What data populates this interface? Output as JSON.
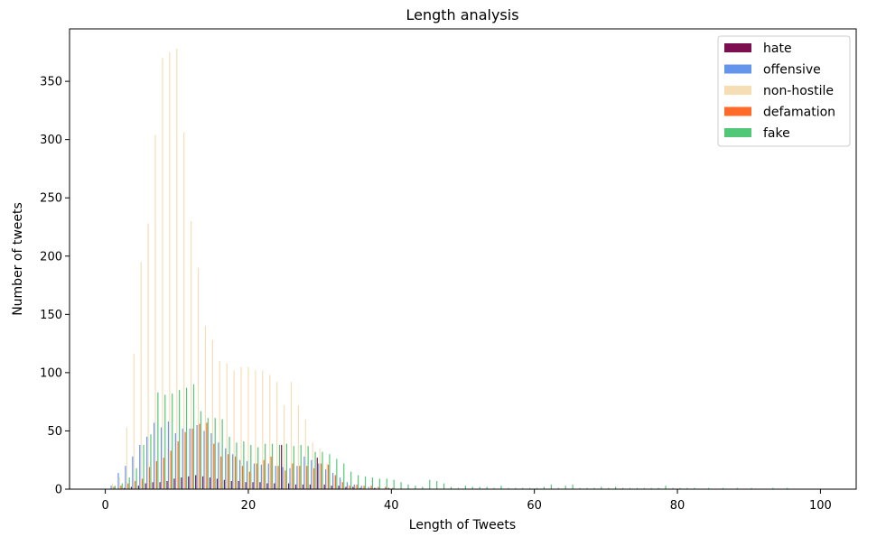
{
  "chart_data": {
    "type": "bar",
    "title": "Length analysis",
    "xlabel": "Length of Tweets",
    "ylabel": "Number of tweets",
    "xlim": [
      -5,
      105
    ],
    "ylim": [
      0,
      395
    ],
    "xticks": [
      0,
      20,
      40,
      60,
      80,
      100
    ],
    "yticks": [
      0,
      50,
      100,
      150,
      200,
      250,
      300,
      350
    ],
    "grid": false,
    "legend_position": "top-right",
    "series": [
      {
        "name": "hate",
        "color": "#7b0f4f",
        "values": [
          [
            3,
            1
          ],
          [
            4,
            2
          ],
          [
            5,
            3
          ],
          [
            6,
            5
          ],
          [
            7,
            6
          ],
          [
            8,
            6
          ],
          [
            9,
            7
          ],
          [
            10,
            9
          ],
          [
            11,
            10
          ],
          [
            12,
            11
          ],
          [
            13,
            12
          ],
          [
            14,
            11
          ],
          [
            15,
            10
          ],
          [
            16,
            9
          ],
          [
            17,
            8
          ],
          [
            18,
            7
          ],
          [
            19,
            7
          ],
          [
            20,
            6
          ],
          [
            21,
            6
          ],
          [
            22,
            6
          ],
          [
            23,
            5
          ],
          [
            24,
            5
          ],
          [
            25,
            38
          ],
          [
            26,
            5
          ],
          [
            27,
            4
          ],
          [
            28,
            4
          ],
          [
            29,
            4
          ],
          [
            30,
            27
          ],
          [
            31,
            4
          ],
          [
            32,
            3
          ],
          [
            33,
            3
          ],
          [
            34,
            2
          ],
          [
            35,
            2
          ],
          [
            36,
            1
          ],
          [
            38,
            1
          ],
          [
            40,
            1
          ]
        ]
      },
      {
        "name": "offensive",
        "color": "#6495ed",
        "values": [
          [
            1,
            3
          ],
          [
            2,
            14
          ],
          [
            3,
            20
          ],
          [
            4,
            28
          ],
          [
            5,
            38
          ],
          [
            6,
            45
          ],
          [
            7,
            57
          ],
          [
            8,
            53
          ],
          [
            9,
            58
          ],
          [
            10,
            48
          ],
          [
            11,
            52
          ],
          [
            12,
            52
          ],
          [
            13,
            55
          ],
          [
            14,
            50
          ],
          [
            15,
            48
          ],
          [
            16,
            40
          ],
          [
            17,
            35
          ],
          [
            18,
            30
          ],
          [
            19,
            25
          ],
          [
            20,
            24
          ],
          [
            21,
            22
          ],
          [
            22,
            21
          ],
          [
            23,
            22
          ],
          [
            24,
            20
          ],
          [
            25,
            19
          ],
          [
            26,
            18
          ],
          [
            27,
            20
          ],
          [
            28,
            28
          ],
          [
            29,
            25
          ],
          [
            30,
            22
          ],
          [
            31,
            17
          ],
          [
            32,
            14
          ],
          [
            33,
            10
          ],
          [
            34,
            6
          ],
          [
            35,
            4
          ],
          [
            36,
            3
          ],
          [
            37,
            2
          ],
          [
            38,
            1
          ]
        ]
      },
      {
        "name": "non-hostile",
        "color": "#f5deb3",
        "values": [
          [
            1,
            5
          ],
          [
            2,
            10
          ],
          [
            3,
            53
          ],
          [
            4,
            116
          ],
          [
            5,
            195
          ],
          [
            6,
            228
          ],
          [
            7,
            304
          ],
          [
            8,
            370
          ],
          [
            9,
            375
          ],
          [
            10,
            378
          ],
          [
            11,
            306
          ],
          [
            12,
            230
          ],
          [
            13,
            190
          ],
          [
            14,
            140
          ],
          [
            15,
            128
          ],
          [
            16,
            110
          ],
          [
            17,
            108
          ],
          [
            18,
            102
          ],
          [
            19,
            105
          ],
          [
            20,
            105
          ],
          [
            21,
            102
          ],
          [
            22,
            102
          ],
          [
            23,
            98
          ],
          [
            24,
            92
          ],
          [
            25,
            72
          ],
          [
            26,
            92
          ],
          [
            27,
            72
          ],
          [
            28,
            60
          ],
          [
            29,
            40
          ],
          [
            30,
            35
          ],
          [
            31,
            22
          ],
          [
            32,
            12
          ],
          [
            33,
            8
          ],
          [
            34,
            4
          ],
          [
            35,
            3
          ],
          [
            36,
            2
          ],
          [
            37,
            1
          ]
        ]
      },
      {
        "name": "defamation",
        "color": "#ff6a28",
        "values": [
          [
            1,
            2
          ],
          [
            2,
            3
          ],
          [
            3,
            5
          ],
          [
            4,
            7
          ],
          [
            5,
            9
          ],
          [
            6,
            19
          ],
          [
            7,
            24
          ],
          [
            8,
            27
          ],
          [
            9,
            33
          ],
          [
            10,
            41
          ],
          [
            11,
            49
          ],
          [
            12,
            52
          ],
          [
            13,
            56
          ],
          [
            14,
            57
          ],
          [
            15,
            39
          ],
          [
            16,
            28
          ],
          [
            17,
            30
          ],
          [
            18,
            28
          ],
          [
            19,
            20
          ],
          [
            20,
            15
          ],
          [
            21,
            22
          ],
          [
            22,
            25
          ],
          [
            23,
            28
          ],
          [
            24,
            20
          ],
          [
            25,
            16
          ],
          [
            26,
            22
          ],
          [
            27,
            20
          ],
          [
            28,
            20
          ],
          [
            29,
            18
          ],
          [
            30,
            22
          ],
          [
            31,
            21
          ],
          [
            32,
            12
          ],
          [
            33,
            6
          ],
          [
            34,
            3
          ],
          [
            35,
            4
          ],
          [
            36,
            3
          ],
          [
            37,
            3
          ],
          [
            38,
            2
          ],
          [
            39,
            2
          ],
          [
            40,
            1
          ]
        ]
      },
      {
        "name": "fake",
        "color": "#50c878",
        "values": [
          [
            1,
            3
          ],
          [
            2,
            5
          ],
          [
            3,
            10
          ],
          [
            4,
            18
          ],
          [
            5,
            38
          ],
          [
            6,
            47
          ],
          [
            7,
            83
          ],
          [
            8,
            81
          ],
          [
            9,
            82
          ],
          [
            10,
            85
          ],
          [
            11,
            87
          ],
          [
            12,
            90
          ],
          [
            13,
            67
          ],
          [
            14,
            61
          ],
          [
            15,
            61
          ],
          [
            16,
            60
          ],
          [
            17,
            45
          ],
          [
            18,
            40
          ],
          [
            19,
            41
          ],
          [
            20,
            38
          ],
          [
            21,
            36
          ],
          [
            22,
            39
          ],
          [
            23,
            39
          ],
          [
            24,
            38
          ],
          [
            25,
            39
          ],
          [
            26,
            37
          ],
          [
            27,
            38
          ],
          [
            28,
            37
          ],
          [
            29,
            32
          ],
          [
            30,
            32
          ],
          [
            31,
            30
          ],
          [
            32,
            26
          ],
          [
            33,
            22
          ],
          [
            34,
            15
          ],
          [
            35,
            12
          ],
          [
            36,
            11
          ],
          [
            37,
            10
          ],
          [
            38,
            9
          ],
          [
            39,
            9
          ],
          [
            40,
            8
          ],
          [
            41,
            6
          ],
          [
            42,
            4
          ],
          [
            43,
            3
          ],
          [
            44,
            2
          ],
          [
            45,
            8
          ],
          [
            46,
            7
          ],
          [
            47,
            5
          ],
          [
            48,
            2
          ],
          [
            49,
            1
          ],
          [
            50,
            3
          ],
          [
            51,
            2
          ],
          [
            52,
            2
          ],
          [
            53,
            2
          ],
          [
            54,
            1
          ],
          [
            55,
            3
          ],
          [
            56,
            1
          ],
          [
            57,
            1
          ],
          [
            58,
            1
          ],
          [
            59,
            1
          ],
          [
            60,
            1
          ],
          [
            61,
            2
          ],
          [
            62,
            4
          ],
          [
            63,
            1
          ],
          [
            64,
            3
          ],
          [
            65,
            4
          ],
          [
            66,
            1
          ],
          [
            67,
            1
          ],
          [
            68,
            1
          ],
          [
            69,
            2
          ],
          [
            70,
            1
          ],
          [
            71,
            2
          ],
          [
            72,
            1
          ],
          [
            73,
            1
          ],
          [
            74,
            1
          ],
          [
            75,
            1
          ],
          [
            76,
            1
          ],
          [
            77,
            1
          ],
          [
            78,
            3
          ],
          [
            79,
            1
          ],
          [
            80,
            1
          ],
          [
            81,
            1
          ],
          [
            82,
            1
          ],
          [
            84,
            1
          ],
          [
            86,
            1
          ],
          [
            88,
            1
          ],
          [
            90,
            1
          ],
          [
            93,
            1
          ],
          [
            95,
            1
          ]
        ]
      }
    ]
  }
}
